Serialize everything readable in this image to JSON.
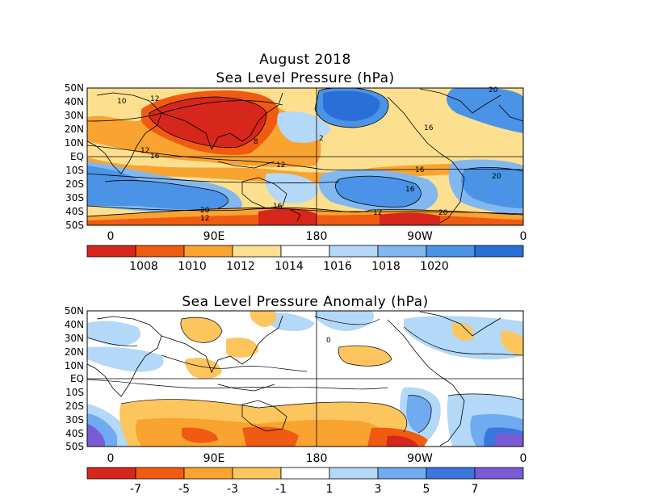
{
  "figure": {
    "title_line1": "August 2018",
    "panel1_title": "Sea Level Pressure (hPa)",
    "panel2_title": "Sea Level Pressure Anomaly (hPa)"
  },
  "colors": {
    "pressure_scale": [
      "#d7261c",
      "#f05b12",
      "#f9a331",
      "#fde08f",
      "#ffffff",
      "#b3d8f8",
      "#82b8ef",
      "#4b93e6",
      "#2a6fd8"
    ],
    "anomaly_scale": [
      "#d7261c",
      "#f05b12",
      "#f9a331",
      "#fcc55e",
      "#ffffff",
      "#b3d8f8",
      "#70aaf0",
      "#3b76dc",
      "#7b5ad6"
    ]
  },
  "chart_data": [
    {
      "type": "heatmap",
      "title": "Sea Level Pressure (hPa)",
      "units": "hPa",
      "lat_labels": [
        "50N",
        "40N",
        "30N",
        "20N",
        "10N",
        "EQ",
        "10S",
        "20S",
        "30S",
        "40S",
        "50S"
      ],
      "lon_labels": [
        "0",
        "90E",
        "180",
        "90W",
        "0"
      ],
      "colorbar_labels": [
        "1008",
        "1010",
        "1012",
        "1014",
        "1016",
        "1018",
        "1020"
      ],
      "contour_labels": [
        "10",
        "12",
        "16",
        "12",
        "8",
        "2",
        "12",
        "16",
        "20",
        "12",
        "16",
        "20",
        "16",
        "12",
        "20",
        "16",
        "20"
      ]
    },
    {
      "type": "heatmap",
      "title": "Sea Level Pressure Anomaly (hPa)",
      "units": "hPa",
      "lat_labels": [
        "50N",
        "40N",
        "30N",
        "20N",
        "10N",
        "EQ",
        "10S",
        "20S",
        "30S",
        "40S",
        "50S"
      ],
      "lon_labels": [
        "0",
        "90E",
        "180",
        "90W",
        "0"
      ],
      "colorbar_labels": [
        "-7",
        "-5",
        "-3",
        "-1",
        "1",
        "3",
        "5",
        "7"
      ],
      "contour_labels": [
        "0"
      ]
    }
  ]
}
